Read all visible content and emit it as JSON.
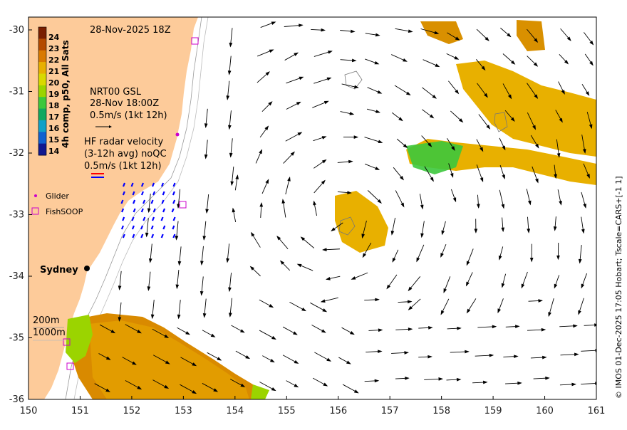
{
  "map": {
    "date_title": "28-Nov-2025 18Z",
    "place_label": "Sydney",
    "credit": "© IMOS 01-Dec-2025 17:05 Hobart; Tscale=CARS+[-1 1]",
    "x_ticks": [
      "150",
      "151",
      "152",
      "153",
      "154",
      "155",
      "156",
      "157",
      "158",
      "159",
      "160",
      "161"
    ],
    "y_ticks": [
      "-30",
      "-31",
      "-32",
      "-33",
      "-34",
      "-35",
      "-36"
    ]
  },
  "colorbar": {
    "title": "4h comp, p50, All Sats",
    "labels": [
      "24",
      "23",
      "22",
      "21",
      "20",
      "19",
      "18",
      "17",
      "16",
      "15",
      "14"
    ],
    "colors": [
      "#7a1f00",
      "#b44a00",
      "#d97a00",
      "#e8b000",
      "#d9d900",
      "#9bd400",
      "#3cc83c",
      "#10a860",
      "#10a0c8",
      "#1060d0",
      "#101890"
    ]
  },
  "legend": {
    "gsl_title": "NRT00 GSL",
    "gsl_time": "28-Nov 18:00Z",
    "gsl_scale": "0.5m/s (1kt 12h)",
    "hf_title": "HF radar velocity",
    "hf_avg": "(3-12h avg) noQC",
    "hf_scale": "0.5m/s (1kt 12h)",
    "glider": "Glider",
    "fishsoop": "FishSOOP",
    "depth_200": "200m",
    "depth_1000": "1000m"
  },
  "colors": {
    "land": "#fdcb9a",
    "ocean": "#ffffff",
    "arrow": "#000000",
    "hf_radar": "#0000ff",
    "marker": "#cc00cc"
  }
}
